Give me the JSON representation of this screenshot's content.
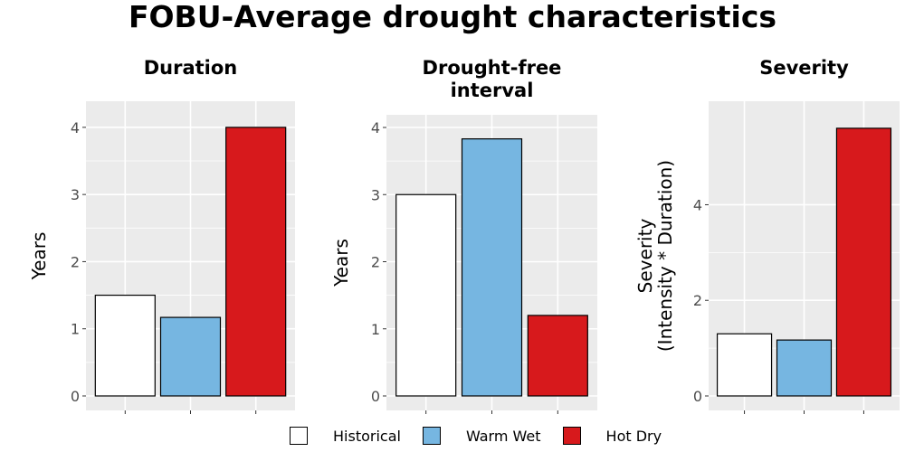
{
  "title": "FOBU-Average drought characteristics",
  "legend": [
    {
      "label": "Historical",
      "color": "#ffffff"
    },
    {
      "label": "Warm Wet",
      "color": "#76b6e1"
    },
    {
      "label": "Hot Dry",
      "color": "#d7191c"
    }
  ],
  "chart_data": [
    {
      "type": "bar",
      "title": "Duration",
      "ylabel": "Years",
      "categories": [
        "Historical",
        "Warm Wet",
        "Hot Dry"
      ],
      "values": [
        1.5,
        1.17,
        4.0
      ],
      "ylim": [
        0,
        4.2
      ],
      "yticks": [
        0,
        1,
        2,
        3,
        4
      ],
      "grid": true
    },
    {
      "type": "bar",
      "title": "Drought-free interval",
      "title_lines": [
        "Drought-free",
        "interval"
      ],
      "ylabel": "Years",
      "categories": [
        "Historical",
        "Warm Wet",
        "Hot Dry"
      ],
      "values": [
        3.0,
        3.83,
        1.2
      ],
      "ylim": [
        0,
        4.0
      ],
      "yticks": [
        0,
        1,
        2,
        3,
        4
      ],
      "grid": true
    },
    {
      "type": "bar",
      "title": "Severity",
      "ylabel": "Severity (Intensity * Duration)",
      "ylabel_lines": [
        "Severity",
        "(Intensity * Duration)"
      ],
      "categories": [
        "Historical",
        "Warm Wet",
        "Hot Dry"
      ],
      "values": [
        1.3,
        1.17,
        5.6
      ],
      "ylim": [
        0,
        5.9
      ],
      "yticks": [
        0,
        2,
        4
      ],
      "grid": true
    }
  ]
}
